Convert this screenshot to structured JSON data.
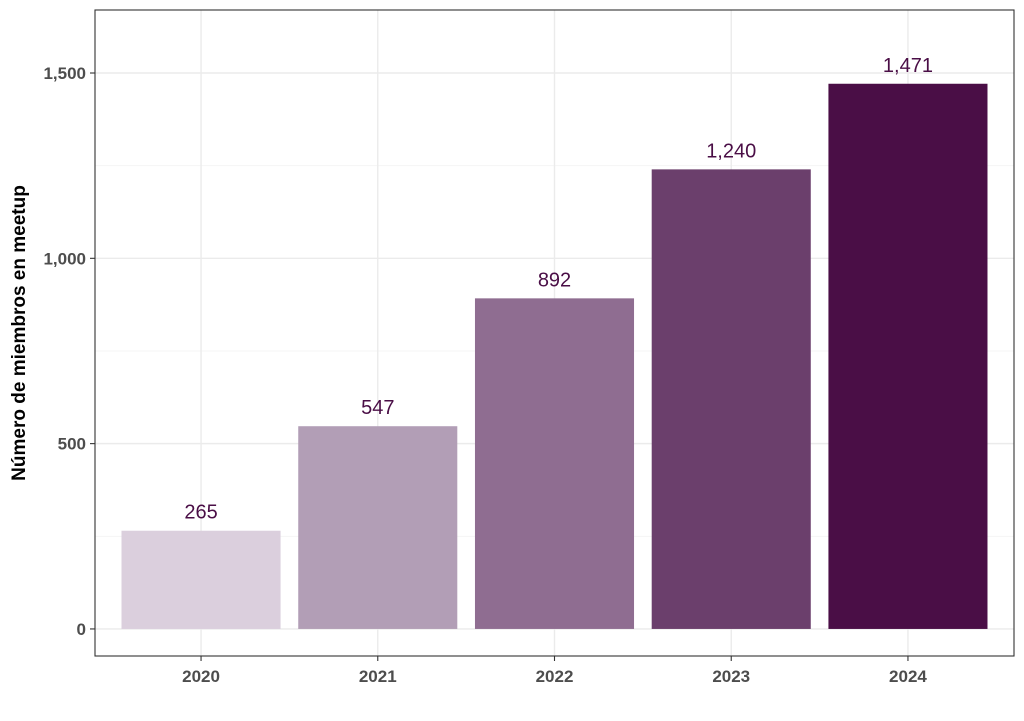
{
  "chart_data": {
    "type": "bar",
    "categories": [
      "2020",
      "2021",
      "2022",
      "2023",
      "2024"
    ],
    "values": [
      265,
      547,
      892,
      1240,
      1471
    ],
    "value_labels": [
      "265",
      "547",
      "892",
      "1,240",
      "1,471"
    ],
    "bar_colors": [
      "#dbcfdd",
      "#b29eb6",
      "#8f6d91",
      "#6b3f6c",
      "#4a0e46"
    ],
    "label_color": "#4a0e46",
    "xlabel": "",
    "ylabel": "Número de miembros en meetup",
    "ylim": [
      -73,
      1670
    ],
    "yticks": [
      0,
      500,
      1000,
      1500
    ],
    "ytick_labels": [
      "0",
      "500",
      "1,000",
      "1,500"
    ],
    "grid": true,
    "legend": "none"
  }
}
